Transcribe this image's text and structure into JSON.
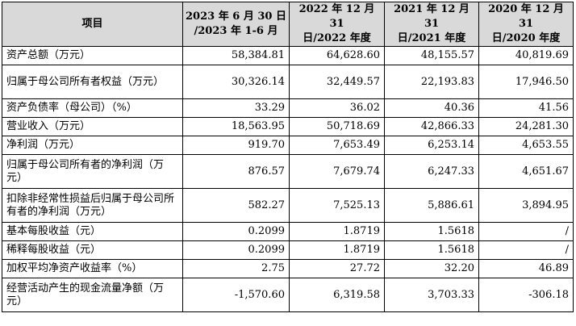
{
  "headers": [
    {
      "line1": "项目",
      "line2": ""
    },
    {
      "line1": "2023 年 6 月 30 日",
      "line2": "/2023 年 1-6 月"
    },
    {
      "line1": "2022 年 12 月 31",
      "line2": "日/2022 年度"
    },
    {
      "line1": "2021 年 12 月 31",
      "line2": "日/2021 年度"
    },
    {
      "line1": "2020 年 12 月 31",
      "line2": "日/2020 年度"
    }
  ],
  "rows": [
    {
      "label": "资产总额（万元）",
      "values": [
        "58,384.81",
        "64,628.60",
        "48,155.57",
        "40,819.69"
      ]
    },
    {
      "label": "归属于母公司所有者权益（万元）",
      "values": [
        "30,326.14",
        "32,449.57",
        "22,193.83",
        "17,946.50"
      ]
    },
    {
      "label": "资产负债率（母公司）（%）",
      "values": [
        "33.29",
        "36.02",
        "40.36",
        "41.56"
      ]
    },
    {
      "label": "营业收入（万元）",
      "values": [
        "18,563.95",
        "50,718.69",
        "42,866.33",
        "24,281.30"
      ]
    },
    {
      "label": "净利润（万元）",
      "values": [
        "919.70",
        "7,653.49",
        "6,253.14",
        "4,653.55"
      ]
    },
    {
      "label": "归属于母公司所有者的净利润（万元）",
      "values": [
        "876.57",
        "7,679.74",
        "6,247.33",
        "4,651.67"
      ]
    },
    {
      "label": "扣除非经常性损益后归属于母公司所有者的净利润（万元）",
      "values": [
        "582.27",
        "7,525.13",
        "5,886.61",
        "3,894.95"
      ]
    },
    {
      "label": "基本每股收益（元）",
      "values": [
        "0.2099",
        "1.8719",
        "1.5618",
        "/"
      ]
    },
    {
      "label": "稀释每股收益（元）",
      "values": [
        "0.2099",
        "1.8719",
        "1.5618",
        "/"
      ]
    },
    {
      "label": "加权平均净资产收益率（%）",
      "values": [
        "2.75",
        "27.72",
        "32.20",
        "46.89"
      ]
    },
    {
      "label": "经营活动产生的现金流量净额（万元）",
      "values": [
        "-1,570.60",
        "6,319.58",
        "3,703.33",
        "-306.18"
      ]
    }
  ]
}
